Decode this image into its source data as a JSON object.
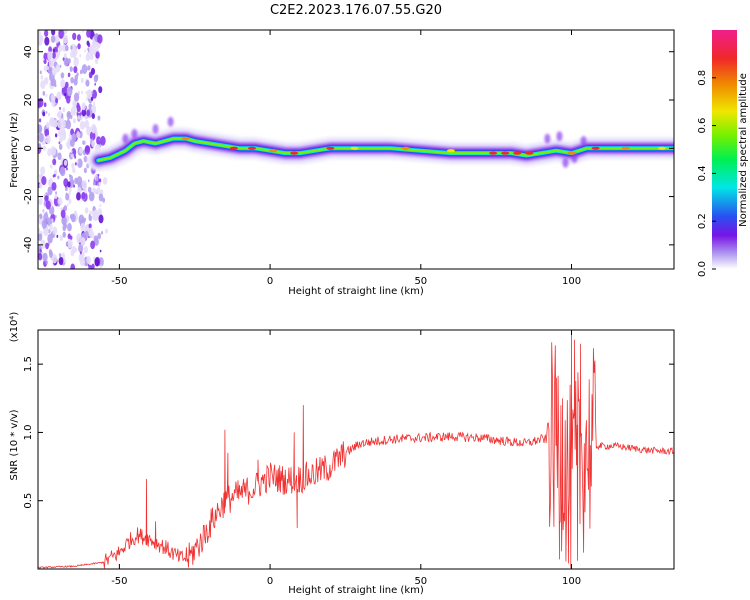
{
  "title": "C2E2.2023.176.07.55.G20",
  "chart_data": [
    {
      "type": "heatmap",
      "xlabel": "Height of straight line (km)",
      "ylabel": "Frequency (Hz)",
      "xlim": [
        -77,
        134
      ],
      "ylim": [
        -50,
        49
      ],
      "xticks": [
        -50,
        0,
        50,
        100
      ],
      "yticks": [
        -40,
        -20,
        0,
        20,
        40
      ],
      "ridge": [
        [
          -57,
          -5
        ],
        [
          -53,
          -4
        ],
        [
          -48,
          -1
        ],
        [
          -45,
          2
        ],
        [
          -42,
          3
        ],
        [
          -38,
          2
        ],
        [
          -35,
          3
        ],
        [
          -32,
          4
        ],
        [
          -28,
          4
        ],
        [
          -25,
          3
        ],
        [
          -20,
          2
        ],
        [
          -15,
          1
        ],
        [
          -10,
          0
        ],
        [
          -5,
          0
        ],
        [
          0,
          -1
        ],
        [
          5,
          -2
        ],
        [
          10,
          -2
        ],
        [
          15,
          -1
        ],
        [
          20,
          0
        ],
        [
          30,
          0
        ],
        [
          40,
          0
        ],
        [
          50,
          -1
        ],
        [
          60,
          -2
        ],
        [
          70,
          -2
        ],
        [
          80,
          -2
        ],
        [
          85,
          -3
        ],
        [
          90,
          -2
        ],
        [
          95,
          -1
        ],
        [
          100,
          -2
        ],
        [
          105,
          0
        ],
        [
          115,
          0
        ],
        [
          125,
          0
        ],
        [
          134,
          0
        ]
      ],
      "colorbar": {
        "label": "Normalized spectral amplitude",
        "ticks": [
          "0.0",
          "0.2",
          "0.4",
          "0.6",
          "0.8"
        ],
        "range": [
          0,
          1
        ],
        "colormap": [
          "#ffffff",
          "#b4a0f0",
          "#7814e6",
          "#2850f0",
          "#00e6e6",
          "#00f050",
          "#78f000",
          "#f0e600",
          "#f08c00",
          "#f02828",
          "#f01e8c"
        ]
      }
    },
    {
      "type": "line",
      "xlabel": "Height of straight line (km)",
      "ylabel": "SNR (10 * v/v)",
      "scale_label": "(x10⁴)",
      "xlim": [
        -77,
        134
      ],
      "ylim": [
        0,
        1.75
      ],
      "xticks": [
        -50,
        0,
        50,
        100
      ],
      "yticks": [
        "0.5",
        "1.0",
        "1.5"
      ],
      "color": "#f03232",
      "envelope": [
        [
          -77,
          0.01
        ],
        [
          -65,
          0.02
        ],
        [
          -55,
          0.05
        ],
        [
          -50,
          0.12
        ],
        [
          -47,
          0.2
        ],
        [
          -44,
          0.25
        ],
        [
          -40,
          0.22
        ],
        [
          -35,
          0.16
        ],
        [
          -30,
          0.08
        ],
        [
          -27,
          0.08
        ],
        [
          -23,
          0.2
        ],
        [
          -18,
          0.4
        ],
        [
          -15,
          0.5
        ],
        [
          -10,
          0.55
        ],
        [
          -5,
          0.6
        ],
        [
          0,
          0.68
        ],
        [
          5,
          0.65
        ],
        [
          10,
          0.66
        ],
        [
          15,
          0.7
        ],
        [
          20,
          0.75
        ],
        [
          25,
          0.85
        ],
        [
          30,
          0.92
        ],
        [
          40,
          0.95
        ],
        [
          50,
          0.96
        ],
        [
          60,
          0.97
        ],
        [
          70,
          0.96
        ],
        [
          80,
          0.93
        ],
        [
          85,
          0.92
        ],
        [
          90,
          0.95
        ],
        [
          93,
          0.95
        ],
        [
          96,
          0.9
        ],
        [
          100,
          0.6
        ],
        [
          104,
          0.9
        ],
        [
          107,
          0.9
        ],
        [
          115,
          0.9
        ],
        [
          125,
          0.87
        ],
        [
          134,
          0.86
        ]
      ],
      "spikes": [
        [
          -41,
          0.66
        ],
        [
          -38,
          0.35
        ],
        [
          -15,
          1.02
        ],
        [
          -14,
          0.85
        ],
        [
          -4,
          0.8
        ],
        [
          8,
          1.0
        ],
        [
          11,
          1.2
        ],
        [
          9,
          0.3
        ],
        [
          95,
          1.4
        ],
        [
          97,
          1.25
        ],
        [
          100,
          1.75
        ],
        [
          101,
          1.68
        ],
        [
          103,
          1.65
        ],
        [
          107,
          1.05
        ],
        [
          96,
          0.07
        ],
        [
          99,
          0.04
        ],
        [
          102,
          0.06
        ],
        [
          104,
          0.12
        ]
      ]
    }
  ]
}
